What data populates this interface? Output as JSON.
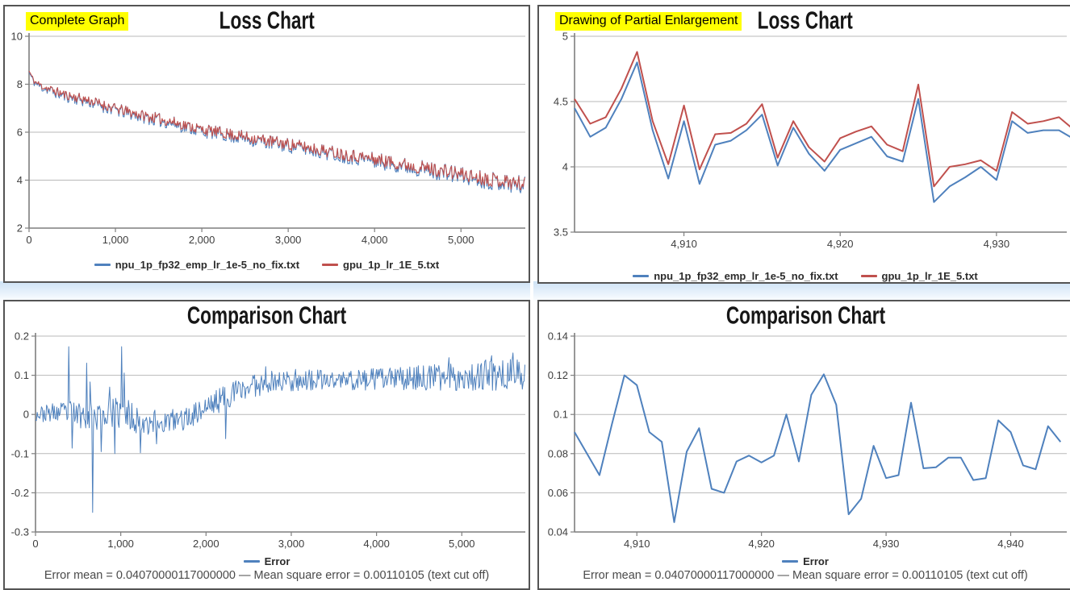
{
  "colors": {
    "blue": "#4F81BD",
    "red": "#C0504D",
    "grid": "#b9b9b9",
    "axis": "#7f7f7f",
    "tick_text": "#3d3d3d",
    "highlight_bg": "#ffff00",
    "panel_border": "#545454",
    "band_top": "#cde2f5"
  },
  "chart_data": [
    {
      "id": "loss_complete",
      "type": "line",
      "tag": "Complete Graph",
      "title": "Loss Chart",
      "xlim": [
        0,
        5745
      ],
      "ylim": [
        2,
        10
      ],
      "xticks": [
        {
          "v": 0,
          "label": "0"
        },
        {
          "v": 1000,
          "label": "1,000"
        },
        {
          "v": 2000,
          "label": "2,000"
        },
        {
          "v": 3000,
          "label": "3,000"
        },
        {
          "v": 4000,
          "label": "4,000"
        },
        {
          "v": 5000,
          "label": "5,000"
        }
      ],
      "yticks": [
        {
          "v": 2,
          "label": "2"
        },
        {
          "v": 4,
          "label": "4"
        },
        {
          "v": 6,
          "label": "6"
        },
        {
          "v": 8,
          "label": "8"
        },
        {
          "v": 10,
          "label": "10"
        }
      ],
      "legend": [
        {
          "label": "npu_1p_fp32_emp_lr_1e-5_no_fix.txt",
          "color": "#4F81BD"
        },
        {
          "label": "gpu_1p_lr_1E_5.txt",
          "color": "#C0504D"
        }
      ],
      "series": [
        {
          "name": "npu_1p_fp32_emp_lr_1e-5_no_fix.txt",
          "kind": "noisy",
          "color": "#4F81BD",
          "w": 1.1,
          "seed": 11,
          "step": 10,
          "center_offset": -0.05,
          "amp_scale": 1.28,
          "envelope": [
            [
              0,
              8.55,
              0.06
            ],
            [
              60,
              8.12,
              0.12
            ],
            [
              150,
              7.92,
              0.17
            ],
            [
              400,
              7.58,
              0.2
            ],
            [
              700,
              7.32,
              0.21
            ],
            [
              1000,
              6.98,
              0.22
            ],
            [
              1300,
              6.72,
              0.22
            ],
            [
              1600,
              6.48,
              0.23
            ],
            [
              2000,
              6.12,
              0.23
            ],
            [
              2400,
              5.87,
              0.24
            ],
            [
              2800,
              5.62,
              0.25
            ],
            [
              3200,
              5.38,
              0.25
            ],
            [
              3600,
              5.12,
              0.26
            ],
            [
              4000,
              4.88,
              0.27
            ],
            [
              4400,
              4.62,
              0.28
            ],
            [
              4800,
              4.38,
              0.29
            ],
            [
              5200,
              4.12,
              0.3
            ],
            [
              5500,
              3.97,
              0.31
            ],
            [
              5745,
              3.82,
              0.31
            ]
          ]
        },
        {
          "name": "gpu_1p_lr_1E_5.txt",
          "kind": "noisy",
          "color": "#C0504D",
          "w": 1.1,
          "seed": 11,
          "step": 10,
          "center_offset": 0,
          "amp_scale": 1,
          "envelope": [
            [
              0,
              8.55,
              0.06
            ],
            [
              60,
              8.12,
              0.12
            ],
            [
              150,
              7.92,
              0.17
            ],
            [
              400,
              7.58,
              0.2
            ],
            [
              700,
              7.32,
              0.21
            ],
            [
              1000,
              6.98,
              0.22
            ],
            [
              1300,
              6.72,
              0.22
            ],
            [
              1600,
              6.48,
              0.23
            ],
            [
              2000,
              6.12,
              0.23
            ],
            [
              2400,
              5.87,
              0.24
            ],
            [
              2800,
              5.62,
              0.25
            ],
            [
              3200,
              5.38,
              0.25
            ],
            [
              3600,
              5.12,
              0.26
            ],
            [
              4000,
              4.88,
              0.27
            ],
            [
              4400,
              4.62,
              0.28
            ],
            [
              4800,
              4.38,
              0.29
            ],
            [
              5200,
              4.12,
              0.3
            ],
            [
              5500,
              3.97,
              0.31
            ],
            [
              5745,
              3.82,
              0.31
            ]
          ]
        }
      ]
    },
    {
      "id": "loss_zoom",
      "type": "line",
      "tag": "Drawing of Partial Enlargement",
      "title": "Loss Chart",
      "xlim": [
        4903,
        4934.5
      ],
      "ylim": [
        3.5,
        5
      ],
      "xticks": [
        {
          "v": 4910,
          "label": "4,910"
        },
        {
          "v": 4920,
          "label": "4,920"
        },
        {
          "v": 4930,
          "label": "4,930"
        }
      ],
      "yticks": [
        {
          "v": 3.5,
          "label": "3.5"
        },
        {
          "v": 4,
          "label": "4"
        },
        {
          "v": 4.5,
          "label": "4.5"
        },
        {
          "v": 5,
          "label": "5"
        }
      ],
      "legend": [
        {
          "label": "npu_1p_fp32_emp_lr_1e-5_no_fix.txt",
          "color": "#4F81BD"
        },
        {
          "label": "gpu_1p_lr_1E_5.txt",
          "color": "#C0504D"
        }
      ],
      "series": [
        {
          "name": "npu_1p_fp32_emp_lr_1e-5_no_fix.txt",
          "kind": "points",
          "color": "#4F81BD",
          "w": 2,
          "x0": 4903,
          "dx": 1,
          "y": [
            4.45,
            4.23,
            4.3,
            4.52,
            4.8,
            4.28,
            3.91,
            4.35,
            3.87,
            4.17,
            4.2,
            4.28,
            4.4,
            4.01,
            4.3,
            4.1,
            3.97,
            4.13,
            4.18,
            4.23,
            4.08,
            4.04,
            4.52,
            3.73,
            3.85,
            3.92,
            4.0,
            3.9,
            4.35,
            4.26,
            4.28,
            4.28,
            4.21,
            4.26
          ]
        },
        {
          "name": "gpu_1p_lr_1E_5.txt",
          "kind": "points",
          "color": "#C0504D",
          "w": 2,
          "x0": 4903,
          "dx": 1,
          "y": [
            4.52,
            4.33,
            4.38,
            4.6,
            4.88,
            4.35,
            4.02,
            4.47,
            3.98,
            4.25,
            4.26,
            4.33,
            4.48,
            4.07,
            4.35,
            4.15,
            4.04,
            4.22,
            4.27,
            4.31,
            4.17,
            4.12,
            4.63,
            3.85,
            4.0,
            4.02,
            4.05,
            3.97,
            4.42,
            4.33,
            4.35,
            4.38,
            4.28,
            4.33
          ]
        }
      ]
    },
    {
      "id": "comparison_complete",
      "type": "line",
      "title": "Comparison Chart",
      "xlim": [
        0,
        5745
      ],
      "ylim": [
        -0.3,
        0.2
      ],
      "xticks": [
        {
          "v": 0,
          "label": "0"
        },
        {
          "v": 1000,
          "label": "1,000"
        },
        {
          "v": 2000,
          "label": "2,000"
        },
        {
          "v": 3000,
          "label": "3,000"
        },
        {
          "v": 4000,
          "label": "4,000"
        },
        {
          "v": 5000,
          "label": "5,000"
        }
      ],
      "yticks": [
        {
          "v": -0.3,
          "label": "-0.3"
        },
        {
          "v": -0.2,
          "label": "-0.2"
        },
        {
          "v": -0.1,
          "label": "-0.1"
        },
        {
          "v": 0,
          "label": "0"
        },
        {
          "v": 0.1,
          "label": "0.1"
        },
        {
          "v": 0.2,
          "label": "0.2"
        }
      ],
      "legend": [
        {
          "label": "Error",
          "color": "#4F81BD"
        }
      ],
      "stat_line": "Error mean = 0.04070000117000000 — Mean square error = 0.00110105 (text cut off)",
      "series": [
        {
          "name": "Error",
          "kind": "noisy",
          "color": "#4F81BD",
          "w": 1,
          "seed": 23,
          "step": 10,
          "center_offset": 0,
          "amp_scale": 1,
          "envelope": [
            [
              0,
              0.0,
              0.018
            ],
            [
              200,
              0.004,
              0.024
            ],
            [
              400,
              0.004,
              0.032
            ],
            [
              700,
              -0.006,
              0.038
            ],
            [
              1000,
              0.004,
              0.042
            ],
            [
              1250,
              -0.014,
              0.038
            ],
            [
              1500,
              -0.02,
              0.032
            ],
            [
              1750,
              -0.012,
              0.028
            ],
            [
              2000,
              0.018,
              0.032
            ],
            [
              2200,
              0.042,
              0.032
            ],
            [
              2400,
              0.062,
              0.032
            ],
            [
              2600,
              0.078,
              0.032
            ],
            [
              2900,
              0.086,
              0.028
            ],
            [
              3400,
              0.086,
              0.028
            ],
            [
              4000,
              0.09,
              0.028
            ],
            [
              4600,
              0.094,
              0.032
            ],
            [
              5100,
              0.098,
              0.038
            ],
            [
              5745,
              0.105,
              0.042
            ]
          ],
          "spikes": [
            [
              390,
              0.173
            ],
            [
              425,
              -0.086
            ],
            [
              600,
              0.131
            ],
            [
              640,
              0.083
            ],
            [
              665,
              -0.25
            ],
            [
              770,
              -0.095
            ],
            [
              870,
              0.07
            ],
            [
              930,
              -0.1
            ],
            [
              1005,
              0.173
            ],
            [
              1035,
              0.106
            ],
            [
              1230,
              -0.098
            ],
            [
              1420,
              -0.075
            ],
            [
              2230,
              -0.062
            ],
            [
              2700,
              0.122
            ],
            [
              3050,
              0.115
            ],
            [
              4850,
              0.145
            ],
            [
              5350,
              0.15
            ],
            [
              5600,
              0.157
            ]
          ]
        }
      ]
    },
    {
      "id": "comparison_zoom",
      "type": "line",
      "title": "Comparison Chart",
      "xlim": [
        4905,
        4944.5
      ],
      "ylim": [
        0.04,
        0.14
      ],
      "xticks": [
        {
          "v": 4910,
          "label": "4,910"
        },
        {
          "v": 4920,
          "label": "4,920"
        },
        {
          "v": 4930,
          "label": "4,930"
        },
        {
          "v": 4940,
          "label": "4,940"
        }
      ],
      "yticks": [
        {
          "v": 0.04,
          "label": "0.04"
        },
        {
          "v": 0.06,
          "label": "0.06"
        },
        {
          "v": 0.08,
          "label": "0.08"
        },
        {
          "v": 0.1,
          "label": "0.1"
        },
        {
          "v": 0.12,
          "label": "0.12"
        },
        {
          "v": 0.14,
          "label": "0.14"
        }
      ],
      "legend": [
        {
          "label": "Error",
          "color": "#4F81BD"
        }
      ],
      "stat_line": "Error mean = 0.04070000117000000 — Mean square error = 0.00110105 (text cut off)",
      "series": [
        {
          "name": "Error",
          "kind": "points",
          "color": "#4F81BD",
          "w": 2,
          "x0": 4905,
          "dx": 1,
          "y": [
            0.091,
            0.08,
            0.069,
            0.095,
            0.12,
            0.115,
            0.091,
            0.086,
            0.045,
            0.081,
            0.093,
            0.062,
            0.06,
            0.076,
            0.079,
            0.0755,
            0.079,
            0.1,
            0.076,
            0.11,
            0.1205,
            0.105,
            0.049,
            0.057,
            0.084,
            0.0675,
            0.069,
            0.106,
            0.0725,
            0.073,
            0.078,
            0.078,
            0.0665,
            0.0675,
            0.097,
            0.091,
            0.074,
            0.072,
            0.094,
            0.086
          ]
        }
      ]
    }
  ]
}
